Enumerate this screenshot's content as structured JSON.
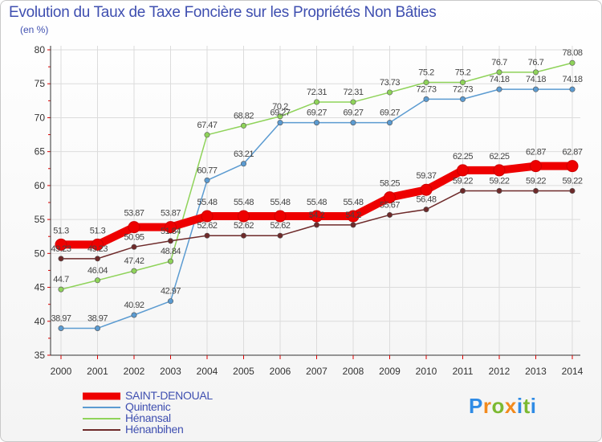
{
  "title": "Evolution du Taux de Taxe Foncière sur les Propriétés Non Bâties",
  "unit_label": "(en %)",
  "logo": {
    "letters": [
      "P",
      "r",
      "o",
      "x",
      "i",
      "t",
      "i"
    ],
    "colors": [
      "#2f8be5",
      "#f28a1d",
      "#7cb931",
      "#f28a1d",
      "#2f8be5",
      "#7cb931",
      "#2f8be5"
    ]
  },
  "chart_data": {
    "type": "line",
    "title": "Evolution du Taux de Taxe Foncière sur les Propriétés Non Bâties",
    "ylabel": "(en %)",
    "xlabel": "",
    "x": [
      "2000",
      "2001",
      "2002",
      "2003",
      "2004",
      "2005",
      "2006",
      "2007",
      "2008",
      "2009",
      "2010",
      "2011",
      "2012",
      "2013",
      "2014"
    ],
    "ylim": [
      35,
      80
    ],
    "yticks": [
      "35",
      "40",
      "45",
      "50",
      "55",
      "60",
      "65",
      "70",
      "75",
      "80"
    ],
    "series": [
      {
        "name": "SAINT-DENOUAL",
        "color": "#ee0000",
        "values": [
          51.3,
          51.3,
          53.87,
          53.87,
          55.48,
          55.48,
          55.48,
          55.48,
          55.48,
          58.25,
          59.37,
          62.25,
          62.25,
          62.87,
          62.87
        ],
        "labels": [
          "51.3",
          "51.3",
          "53.87",
          "53.87",
          "55.48",
          "55.48",
          "55.48",
          "55.48",
          "55.48",
          "58.25",
          "59.37",
          "62.25",
          "62.25",
          "62.87",
          "62.87"
        ]
      },
      {
        "name": "Quintenic",
        "color": "#5b9bd1",
        "values": [
          38.97,
          38.97,
          40.92,
          42.97,
          60.77,
          63.21,
          69.27,
          69.27,
          69.27,
          69.27,
          72.73,
          72.73,
          74.18,
          74.18,
          74.18
        ],
        "labels": [
          "38.97",
          "38.97",
          "40.92",
          "42.97",
          "60.77",
          "63.21",
          "69.27",
          "69.27",
          "69.27",
          "69.27",
          "72.73",
          "72.73",
          "74.18",
          "74.18",
          "74.18"
        ]
      },
      {
        "name": "Hénansal",
        "color": "#8fd35a",
        "values": [
          44.7,
          46.04,
          47.42,
          48.84,
          67.47,
          68.82,
          70.2,
          72.31,
          72.31,
          73.73,
          75.2,
          75.2,
          76.7,
          76.7,
          78.08
        ],
        "labels": [
          "44.7",
          "46.04",
          "47.42",
          "48.84",
          "67.47",
          "68.82",
          "70.2",
          "72.31",
          "72.31",
          "73.73",
          "75.2",
          "75.2",
          "76.7",
          "76.7",
          "78.08"
        ]
      },
      {
        "name": "Hénanbihen",
        "color": "#6e2a2a",
        "values": [
          49.23,
          49.23,
          50.95,
          51.84,
          52.62,
          52.62,
          52.62,
          54.2,
          54.2,
          55.67,
          56.48,
          59.22,
          59.22,
          59.22,
          59.22
        ],
        "labels": [
          "49.23",
          "49.23",
          "50.95",
          "51.84",
          "52.62",
          "52.62",
          "52.62",
          "54.2",
          "54.2",
          "55.67",
          "56.48",
          "59.22",
          "59.22",
          "59.22",
          "59.22"
        ]
      }
    ]
  }
}
